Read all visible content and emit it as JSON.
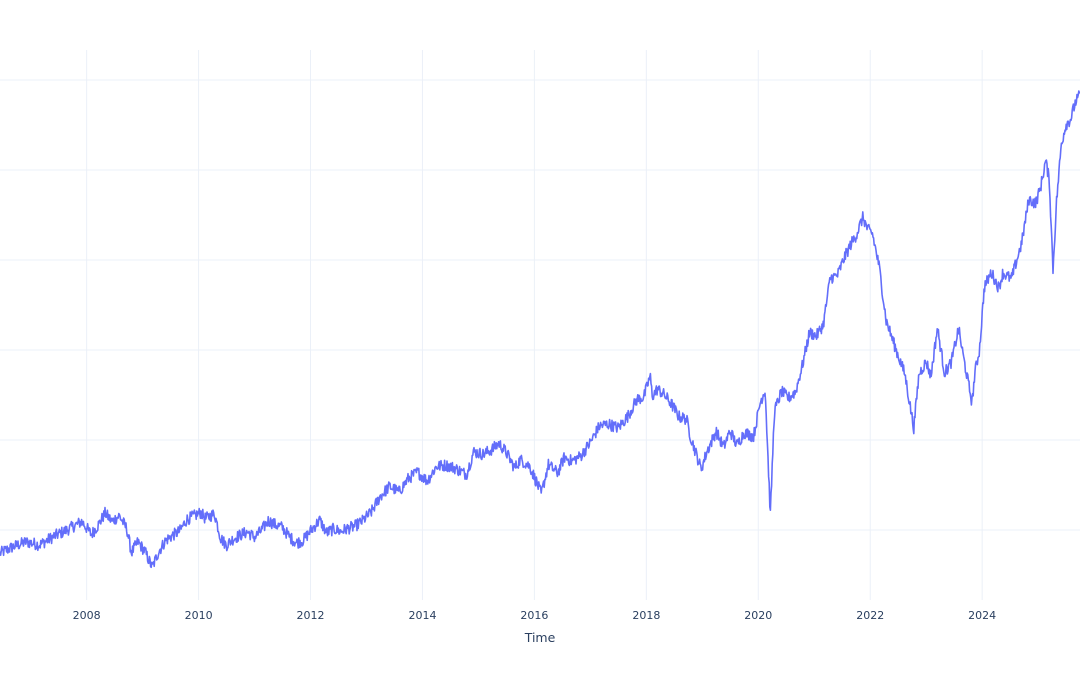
{
  "chart_data": {
    "type": "line",
    "title": "",
    "xlabel": "Time",
    "ylabel": "",
    "x_tick_labels": [
      "2008",
      "2010",
      "2012",
      "2014",
      "2016",
      "2018",
      "2020",
      "2022",
      "2024"
    ],
    "xlim": [
      "2006-06-15",
      "2025-10-01"
    ],
    "ylim": [
      0,
      100
    ],
    "grid": true,
    "legend": "none",
    "line_color": "#636efa",
    "series": [
      {
        "x": [
          "2006-06-15",
          "2006-09-01",
          "2006-12-01",
          "2007-03-01",
          "2007-06-01",
          "2007-09-01",
          "2007-12-01",
          "2008-02-01",
          "2008-03-15",
          "2008-05-01",
          "2008-06-15",
          "2008-08-01",
          "2008-09-20",
          "2008-10-20",
          "2008-12-01",
          "2009-01-15",
          "2009-03-05",
          "2009-04-15",
          "2009-06-01",
          "2009-07-15",
          "2009-09-01",
          "2009-10-15",
          "2009-12-01",
          "2010-01-15",
          "2010-02-15",
          "2010-04-15",
          "2010-05-25",
          "2010-07-01",
          "2010-08-15",
          "2010-10-01",
          "2010-11-15",
          "2011-01-01",
          "2011-02-15",
          "2011-04-01",
          "2011-05-15",
          "2011-07-01",
          "2011-08-20",
          "2011-10-01",
          "2011-11-15",
          "2012-01-01",
          "2012-03-01",
          "2012-04-15",
          "2012-06-01",
          "2012-07-15",
          "2012-09-01",
          "2012-10-15",
          "2012-12-01",
          "2013-02-01",
          "2013-04-01",
          "2013-06-01",
          "2013-08-01",
          "2013-10-01",
          "2013-12-01",
          "2014-02-01",
          "2014-04-01",
          "2014-06-01",
          "2014-08-01",
          "2014-10-15",
          "2014-12-01",
          "2015-02-01",
          "2015-04-01",
          "2015-05-15",
          "2015-07-01",
          "2015-08-25",
          "2015-10-01",
          "2015-12-01",
          "2016-01-20",
          "2016-02-15",
          "2016-04-01",
          "2016-06-01",
          "2016-07-15",
          "2016-09-01",
          "2016-11-01",
          "2017-01-01",
          "2017-03-01",
          "2017-05-01",
          "2017-07-01",
          "2017-09-01",
          "2017-11-01",
          "2017-12-15",
          "2018-01-26",
          "2018-02-09",
          "2018-03-15",
          "2018-05-01",
          "2018-06-15",
          "2018-08-01",
          "2018-09-20",
          "2018-10-15",
          "2018-12-24",
          "2019-02-01",
          "2019-04-01",
          "2019-05-20",
          "2019-07-01",
          "2019-08-15",
          "2019-10-01",
          "2019-12-01",
          "2020-01-15",
          "2020-02-15",
          "2020-03-20",
          "2020-04-15",
          "2020-06-01",
          "2020-07-15",
          "2020-09-01",
          "2020-10-15",
          "2020-12-01",
          "2021-01-15",
          "2021-03-01",
          "2021-04-15",
          "2021-06-01",
          "2021-07-15",
          "2021-09-01",
          "2021-10-01",
          "2021-11-15",
          "2021-12-15",
          "2022-01-15",
          "2022-03-01",
          "2022-04-15",
          "2022-06-15",
          "2022-08-15",
          "2022-10-12",
          "2022-11-15",
          "2023-01-01",
          "2023-02-01",
          "2023-03-15",
          "2023-05-01",
          "2023-06-15",
          "2023-07-31",
          "2023-09-01",
          "2023-10-27",
          "2023-11-15",
          "2023-12-15",
          "2024-01-15",
          "2024-03-01",
          "2024-04-19",
          "2024-05-15",
          "2024-07-10",
          "2024-08-05",
          "2024-09-15",
          "2024-11-01",
          "2024-12-15",
          "2025-01-15",
          "2025-02-19",
          "2025-03-15",
          "2025-04-08",
          "2025-05-01",
          "2025-06-01",
          "2025-07-01",
          "2025-08-01",
          "2025-09-01",
          "2025-10-01"
        ],
        "y": [
          4.4,
          5.6,
          6.7,
          6.1,
          7.8,
          9.2,
          10.8,
          8.2,
          10.0,
          12.5,
          10.8,
          12.0,
          9.3,
          4.5,
          6.7,
          4.8,
          1.5,
          4.7,
          7.0,
          8.0,
          8.9,
          11.2,
          11.9,
          12.6,
          11.4,
          12.4,
          7.5,
          6.0,
          7.3,
          8.1,
          8.7,
          7.6,
          9.0,
          11.0,
          10.2,
          9.6,
          7.6,
          6.5,
          7.0,
          8.9,
          11.1,
          8.5,
          9.3,
          8.8,
          9.4,
          9.8,
          10.8,
          12.7,
          15.9,
          17.9,
          16.8,
          19.5,
          20.8,
          19.0,
          21.9,
          22.2,
          21.6,
          20.3,
          24.9,
          24.4,
          25.4,
          26.6,
          24.8,
          21.6,
          23.3,
          22.0,
          18.4,
          16.3,
          22.3,
          20.6,
          23.8,
          23.0,
          24.1,
          26.8,
          30.1,
          30.5,
          29.7,
          32.0,
          35.5,
          35.9,
          40.2,
          36.1,
          37.6,
          36.3,
          34.5,
          32.0,
          31.5,
          28.1,
          21.4,
          25.0,
          29.0,
          25.8,
          29.1,
          26.2,
          28.8,
          28.0,
          35.0,
          37.5,
          12.1,
          33.0,
          37.1,
          35.7,
          37.0,
          42.3,
          49.0,
          48.3,
          50.6,
          60.0,
          60.5,
          64.0,
          67.1,
          68.6,
          72.3,
          69.8,
          69.0,
          62.2,
          51.4,
          45.8,
          40.6,
          29.7,
          40.6,
          43.1,
          40.2,
          49.9,
          40.8,
          43.1,
          49.8,
          44.0,
          34.8,
          40.9,
          45.6,
          58.2,
          61.1,
          58.0,
          61.0,
          59.8,
          62.6,
          67.0,
          75.9,
          75.1,
          78.0,
          83.7,
          79.7,
          61.7,
          75.4,
          87.0,
          91.0,
          92.1,
          95.5,
          97.0
        ]
      }
    ]
  }
}
